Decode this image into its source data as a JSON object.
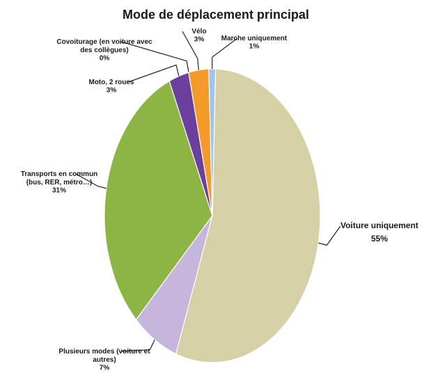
{
  "chart_data": {
    "type": "pie",
    "title": "Mode de déplacement principal",
    "categories": [
      "Voiture uniquement",
      "Plusieurs modes (voiture et autres)",
      "Transports en commun (bus, RER, métro…)",
      "Moto, 2 roues",
      "Covoiturage (en voiture avec des collègues)",
      "Vélo",
      "Marche uniquement"
    ],
    "values": [
      55,
      7,
      31,
      3,
      0,
      3,
      1
    ],
    "value_labels": [
      "55%",
      "7%",
      "31%",
      "3%",
      "0%",
      "3%",
      "1%"
    ],
    "colors": [
      "#d6d0a6",
      "#c7b6db",
      "#8cb544",
      "#6b3f9c",
      "#7a5a3a",
      "#f39a2b",
      "#a3c4ea"
    ]
  }
}
